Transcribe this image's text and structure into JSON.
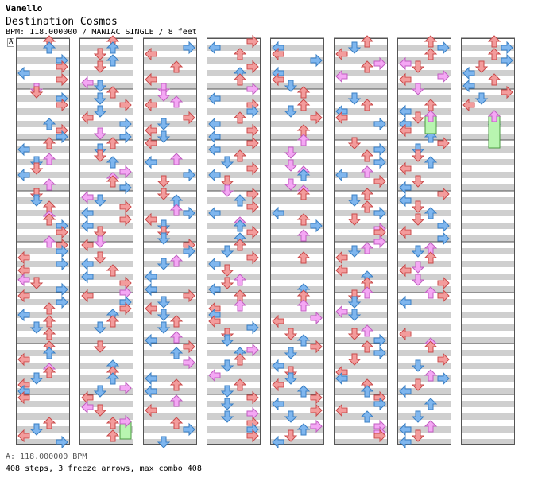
{
  "header": {
    "artist": "Vanello",
    "title": "Destination Cosmos",
    "info": "BPM: 118.000000 / MANIAC SINGLE / 8 feet",
    "marker": "A"
  },
  "footer": {
    "bpm_line": "A: 118.000000 BPM",
    "stats_line": "408 steps, 3 freeze arrows, max combo 408"
  },
  "chart_data": {
    "type": "step-chart",
    "columns": 8,
    "measures_per_column": 8,
    "lanes": [
      "left",
      "down",
      "up",
      "right"
    ],
    "colors": {
      "quarter": "#f39c9c",
      "eighth": "#7fb6ee",
      "sixteenth": "#f4a7f4",
      "freeze_body": "#b8f5b0",
      "grid_stripe": "#cfcfcf"
    },
    "freeze_arrows": [
      {
        "column": 2,
        "measure": 8,
        "lane": "right"
      },
      {
        "column": 7,
        "measure": 2,
        "lane": "up"
      },
      {
        "column": 8,
        "measure": 2,
        "lane": "up"
      }
    ]
  }
}
